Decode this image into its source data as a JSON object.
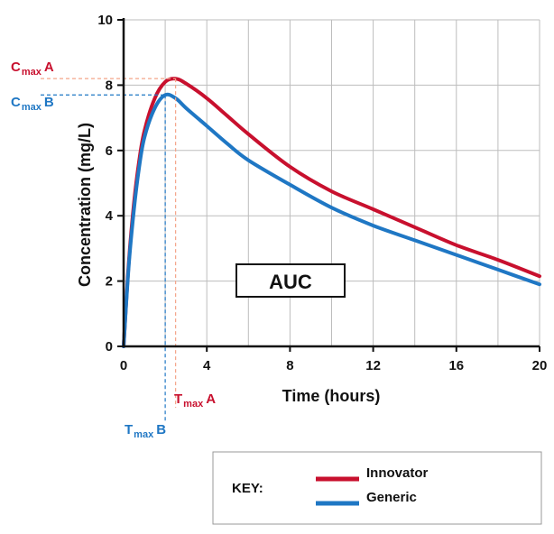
{
  "chart_data": {
    "type": "line",
    "title": "",
    "xlabel": "Time (hours)",
    "ylabel": "Concentration (mg/L)",
    "xlim": [
      0,
      20
    ],
    "ylim": [
      0,
      10
    ],
    "x_ticks": [
      "0",
      "4",
      "8",
      "12",
      "16",
      "20"
    ],
    "y_ticks": [
      "0",
      "2",
      "4",
      "6",
      "8",
      "10"
    ],
    "grid": true,
    "legend_title": "KEY:",
    "legend_position": "bottom",
    "area_label": "AUC",
    "series": [
      {
        "name": "Innovator",
        "color": "#c8102e",
        "x": [
          0,
          0.25,
          0.5,
          0.75,
          1,
          1.5,
          2,
          2.5,
          3,
          4,
          5,
          6,
          8,
          10,
          12,
          14,
          16,
          18,
          20
        ],
        "y": [
          0,
          2.6,
          4.4,
          5.7,
          6.6,
          7.6,
          8.1,
          8.2,
          8.05,
          7.6,
          7.05,
          6.5,
          5.5,
          4.75,
          4.2,
          3.65,
          3.1,
          2.65,
          2.15
        ],
        "cmax": 8.2,
        "tmax": 2.5,
        "cmax_label": "C",
        "cmax_sub": "max",
        "cmax_suffix": "A",
        "tmax_label": "T",
        "tmax_sub": "max",
        "tmax_suffix": "A"
      },
      {
        "name": "Generic",
        "color": "#1f77c4",
        "x": [
          0,
          0.25,
          0.5,
          0.75,
          1,
          1.5,
          2,
          2.5,
          3,
          4,
          5,
          6,
          8,
          10,
          12,
          14,
          16,
          18,
          20
        ],
        "y": [
          0,
          2.5,
          4.2,
          5.5,
          6.4,
          7.3,
          7.7,
          7.6,
          7.3,
          6.75,
          6.2,
          5.7,
          4.95,
          4.25,
          3.7,
          3.25,
          2.8,
          2.35,
          1.9
        ],
        "cmax": 7.7,
        "tmax": 2.0,
        "cmax_label": "C",
        "cmax_sub": "max",
        "cmax_suffix": "B",
        "tmax_label": "T",
        "tmax_sub": "max",
        "tmax_suffix": "B"
      }
    ]
  }
}
